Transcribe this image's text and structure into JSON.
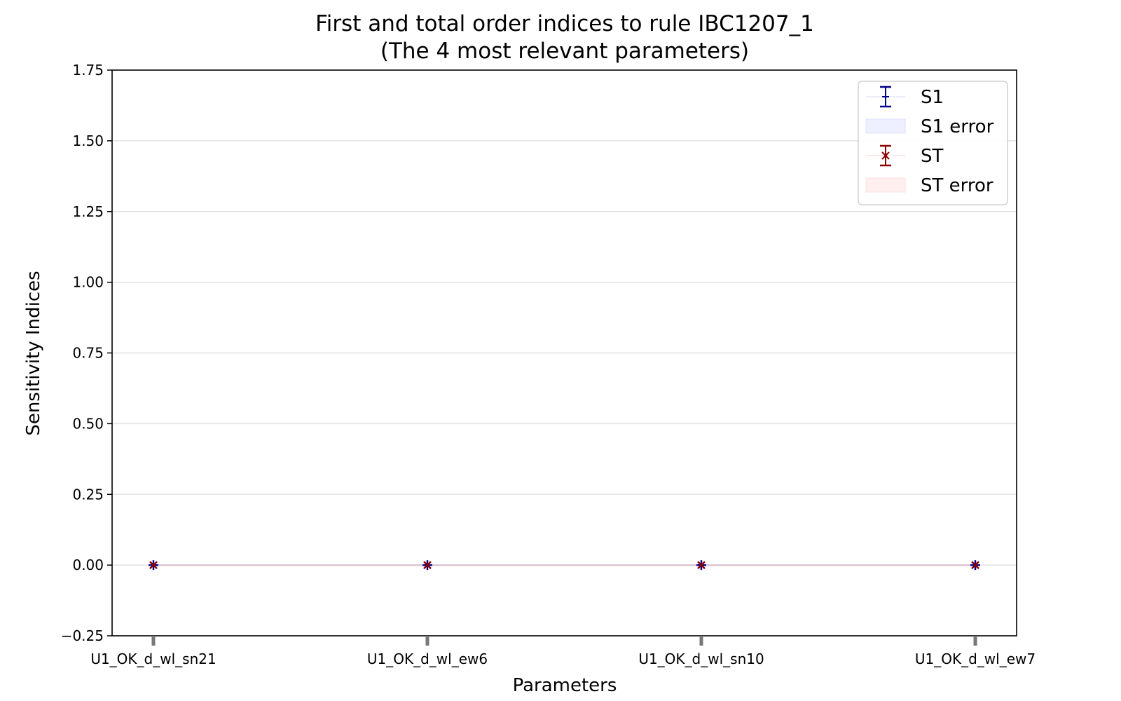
{
  "chart_data": {
    "type": "scatter",
    "title": "First and total order indices to rule IBC1207_1",
    "subtitle": "(The 4 most relevant parameters)",
    "xlabel": "Parameters",
    "ylabel": "Sensitivity Indices",
    "categories": [
      "U1_OK_d_wl_sn21",
      "U1_OK_d_wl_ew6",
      "U1_OK_d_wl_sn10",
      "U1_OK_d_wl_ew7"
    ],
    "ylim": [
      -0.25,
      1.75
    ],
    "yticks": [
      -0.25,
      0.0,
      0.25,
      0.5,
      0.75,
      1.0,
      1.25,
      1.5,
      1.75
    ],
    "ytick_labels": [
      "−0.25",
      "0.00",
      "0.25",
      "0.50",
      "0.75",
      "1.00",
      "1.25",
      "1.50",
      "1.75"
    ],
    "grid": "horizontal",
    "legend_position": "top-right",
    "series": [
      {
        "name": "S1",
        "values": [
          0.0,
          0.0,
          0.0,
          0.0
        ],
        "errors": [
          0.0,
          0.0,
          0.0,
          0.0
        ],
        "marker": "plus",
        "color": "#00008b"
      },
      {
        "name": "S1 error",
        "kind": "band",
        "color": "#eef0ff"
      },
      {
        "name": "ST",
        "values": [
          0.0,
          0.0,
          0.0,
          0.0
        ],
        "errors": [
          0.0,
          0.0,
          0.0,
          0.0
        ],
        "marker": "x",
        "color": "#8b0000"
      },
      {
        "name": "ST error",
        "kind": "band",
        "color": "#ffefef"
      }
    ]
  }
}
